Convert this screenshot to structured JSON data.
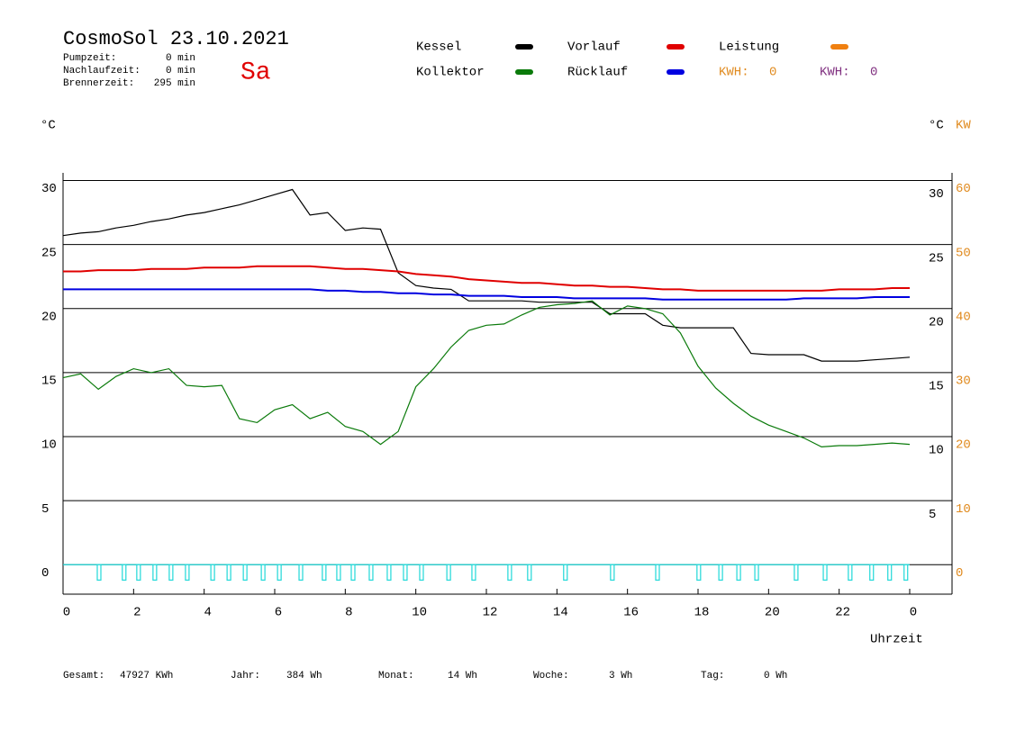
{
  "header": {
    "title": "CosmoSol 23.10.2021",
    "day": "Sa",
    "stats": [
      {
        "label": "Pumpzeit:",
        "value": "0 min"
      },
      {
        "label": "Nachlaufzeit:",
        "value": "0 min"
      },
      {
        "label": "Brennerzeit:",
        "value": "295 min"
      }
    ]
  },
  "kwh": [
    {
      "label": "KWH:",
      "value": 0,
      "color": "#e08a1e"
    },
    {
      "label": "KWH:",
      "value": 0,
      "color": "#803080"
    }
  ],
  "footer": [
    {
      "label": "Gesamt:",
      "value": "47927 KWh"
    },
    {
      "label": "Jahr:",
      "value": "384 Wh"
    },
    {
      "label": "Monat:",
      "value": "14 Wh"
    },
    {
      "label": "Woche:",
      "value": "3 Wh"
    },
    {
      "label": "Tag:",
      "value": "0 Wh"
    }
  ],
  "chart_data": {
    "type": "line",
    "ylabel": "°C",
    "y2label_left": "°C",
    "y2label": "KW",
    "xlabel": "Uhrzeit",
    "extra_legend": {
      "name": "Leistung",
      "color": "#f08010"
    },
    "xlim": [
      0,
      25.2
    ],
    "xticks": [
      0,
      2,
      4,
      6,
      8,
      10,
      12,
      14,
      16,
      18,
      20,
      22,
      {
        "value": 24,
        "label": "0"
      }
    ],
    "ylim": [
      -2.3,
      30.6
    ],
    "yticks": [
      0,
      5,
      10,
      15,
      20,
      25,
      30
    ],
    "yticks_right": [
      5,
      10,
      15,
      20,
      25,
      30
    ],
    "y2lim": [
      -4.6,
      61.2
    ],
    "y2ticks": [
      0,
      10,
      20,
      30,
      40,
      50,
      60
    ],
    "y2color": "#e08a1e",
    "grid": true,
    "x": [
      0,
      0.5,
      1,
      1.5,
      2,
      2.5,
      3,
      3.5,
      4,
      4.5,
      5,
      5.5,
      6,
      6.5,
      7,
      7.5,
      8,
      8.5,
      9,
      9.5,
      10,
      10.5,
      11,
      11.5,
      12,
      12.5,
      13,
      13.5,
      14,
      14.5,
      15,
      15.5,
      16,
      16.5,
      17,
      17.5,
      18,
      18.5,
      19,
      19.5,
      20,
      20.5,
      21,
      21.5,
      22,
      22.5,
      23,
      23.5,
      24
    ],
    "series": [
      {
        "name": "Kessel",
        "color": "#000000",
        "values": [
          25.7,
          25.9,
          26.0,
          26.3,
          26.5,
          26.8,
          27.0,
          27.3,
          27.5,
          27.8,
          28.1,
          28.5,
          28.9,
          29.3,
          27.3,
          27.5,
          26.1,
          26.3,
          26.2,
          22.8,
          21.8,
          21.6,
          21.5,
          20.6,
          20.6,
          20.6,
          20.6,
          20.5,
          20.5,
          20.5,
          20.5,
          19.6,
          19.6,
          19.6,
          18.7,
          18.5,
          18.5,
          18.5,
          18.5,
          16.5,
          16.4,
          16.4,
          16.4,
          15.9,
          15.9,
          15.9,
          16.0,
          16.1,
          16.2
        ]
      },
      {
        "name": "Kollektor",
        "color": "#0a7a0a",
        "values": [
          14.6,
          14.9,
          13.7,
          14.7,
          15.3,
          15.0,
          15.3,
          14.0,
          13.9,
          14.0,
          11.4,
          11.1,
          12.1,
          12.5,
          11.4,
          11.9,
          10.8,
          10.4,
          9.4,
          10.4,
          13.9,
          15.3,
          17.0,
          18.3,
          18.7,
          18.8,
          19.5,
          20.1,
          20.3,
          20.4,
          20.6,
          19.5,
          20.2,
          20.0,
          19.6,
          18.1,
          15.5,
          13.8,
          12.6,
          11.6,
          10.9,
          10.4,
          9.9,
          9.2,
          9.3,
          9.3,
          9.4,
          9.5,
          9.4
        ]
      },
      {
        "name": "Vorlauf",
        "color": "#e00000",
        "values": [
          22.9,
          22.9,
          23.0,
          23.0,
          23.0,
          23.1,
          23.1,
          23.1,
          23.2,
          23.2,
          23.2,
          23.3,
          23.3,
          23.3,
          23.3,
          23.2,
          23.1,
          23.1,
          23.0,
          22.9,
          22.7,
          22.6,
          22.5,
          22.3,
          22.2,
          22.1,
          22.0,
          22.0,
          21.9,
          21.8,
          21.8,
          21.7,
          21.7,
          21.6,
          21.5,
          21.5,
          21.4,
          21.4,
          21.4,
          21.4,
          21.4,
          21.4,
          21.4,
          21.4,
          21.5,
          21.5,
          21.5,
          21.6,
          21.6
        ]
      },
      {
        "name": "Rücklauf",
        "color": "#0000e0",
        "values": [
          21.5,
          21.5,
          21.5,
          21.5,
          21.5,
          21.5,
          21.5,
          21.5,
          21.5,
          21.5,
          21.5,
          21.5,
          21.5,
          21.5,
          21.5,
          21.4,
          21.4,
          21.3,
          21.3,
          21.2,
          21.2,
          21.1,
          21.1,
          21.0,
          21.0,
          21.0,
          20.9,
          20.9,
          20.9,
          20.8,
          20.8,
          20.8,
          20.8,
          20.8,
          20.7,
          20.7,
          20.7,
          20.7,
          20.7,
          20.7,
          20.7,
          20.7,
          20.8,
          20.8,
          20.8,
          20.8,
          20.9,
          20.9,
          20.9
        ]
      }
    ],
    "pulses": {
      "color": "#20d8d8",
      "level": -1.2,
      "x": [
        0.97,
        1.68,
        2.09,
        2.55,
        3.01,
        3.47,
        4.19,
        4.65,
        5.11,
        5.62,
        6.08,
        6.69,
        7.35,
        7.76,
        8.17,
        8.68,
        9.19,
        9.65,
        10.11,
        10.88,
        11.59,
        12.61,
        13.17,
        14.19,
        15.52,
        16.8,
        17.97,
        18.59,
        19.1,
        19.61,
        20.73,
        21.55,
        22.26,
        22.87,
        23.38,
        23.84
      ]
    }
  }
}
